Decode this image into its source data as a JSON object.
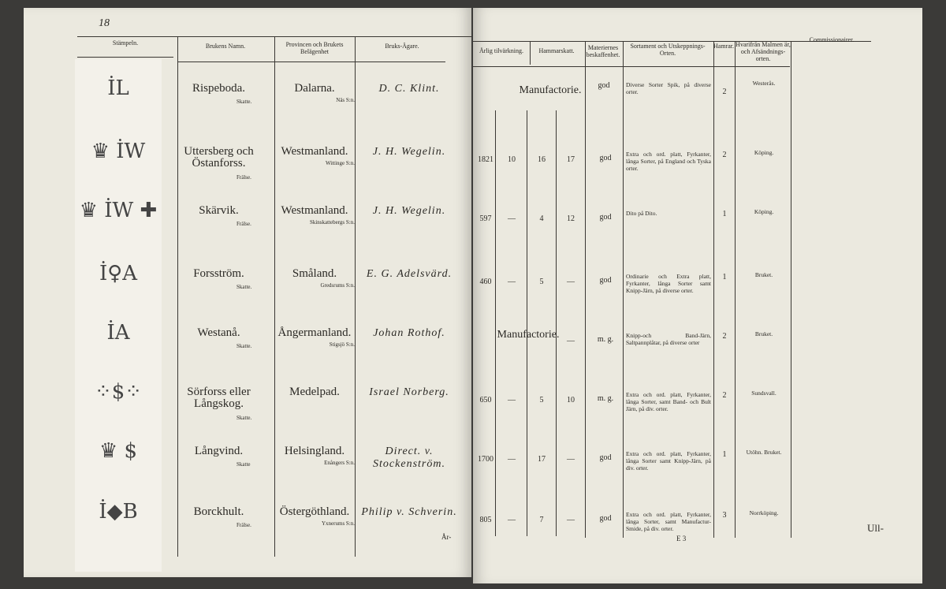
{
  "left_page": {
    "page_number": "18",
    "headers": [
      "Stämpeln.",
      "Brukens Namn.",
      "Provincen och Brukets Belägenhet",
      "Bruks-Ägare."
    ],
    "catchword": "År-"
  },
  "right_page": {
    "headers": [
      "Årlig tilvärkning.",
      "Hammarskatt.",
      "Materiernes beskaffenhet.",
      "Sortament och Utskeppnings-Orten.",
      "Hamrar.",
      "Hvarifrån Malmen är, och Afsändnings-orten.",
      "Commissionairer."
    ],
    "signature_mark": "E 3",
    "catchword": "Ull-"
  },
  "rows": [
    {
      "stamp": "İL",
      "name": "Rispeboda.",
      "tenure": "Skatte.",
      "province": "Dalarna.",
      "parish": "Näs S:n.",
      "owner": "D. C. Klint.",
      "production": "Manufactorie.",
      "c2": "",
      "c3": "",
      "c4": "",
      "quality": "god",
      "assortment": "Diverse Sorter Spik, på diverse orter.",
      "hammers": "2",
      "origin": "Westerås."
    },
    {
      "stamp": "♛ İW",
      "name": "Uttersberg och Östanforss.",
      "tenure": "Frälse.",
      "province": "Westmanland.",
      "parish": "Wittinge S:n.",
      "owner": "J. H. Wegelin.",
      "production": "1821",
      "c2": "10",
      "c3": "16",
      "c4": "17",
      "quality": "god",
      "assortment": "Extra och ord. platt, Fyrkanter, långa Sorter, på England och Tyska orter.",
      "hammers": "2",
      "origin": "Köping."
    },
    {
      "stamp": "♛ İW ✚",
      "name": "Skärvik.",
      "tenure": "Frälse.",
      "province": "Westmanland.",
      "parish": "Skinskattebergs S:n.",
      "owner": "J. H. Wegelin.",
      "production": "597",
      "c2": "—",
      "c3": "4",
      "c4": "12",
      "quality": "god",
      "assortment": "Dito på Dito.",
      "hammers": "1",
      "origin": "Köping."
    },
    {
      "stamp": "İ♀A",
      "name": "Forsström.",
      "tenure": "Skatte.",
      "province": "Småland.",
      "parish": "Gredsrums S:n.",
      "owner": "E. G. Adelsvärd.",
      "production": "460",
      "c2": "—",
      "c3": "5",
      "c4": "—",
      "quality": "god",
      "assortment": "Ordinarie och Extra platt, Fyrkanter, långa Sorter samt Knipp-Järn, på diverse orter.",
      "hammers": "1",
      "origin": "Bruket."
    },
    {
      "stamp": "İA",
      "name": "Westanå.",
      "tenure": "Skatte.",
      "province": "Ångermanland.",
      "parish": "Stigsjö S:n.",
      "owner": "Johan Rothof.",
      "production": "Manufactorie.",
      "c2": "",
      "c3": "",
      "c4": "—",
      "quality": "m. g.",
      "assortment": "Knipp-och Band-Järn, Saltpannplåtar, på diverse orter",
      "hammers": "2",
      "origin": "Bruket."
    },
    {
      "stamp": "⁘$⁘",
      "name": "Sörforss eller Långskog.",
      "tenure": "Skatte.",
      "province": "Medelpad.",
      "parish": "",
      "owner": "Israel Norberg.",
      "production": "650",
      "c2": "—",
      "c3": "5",
      "c4": "10",
      "quality": "m. g.",
      "assortment": "Extra och ord. platt, Fyrkanter, långa Sorter, samt Band- och Bult Järn, på div. orter.",
      "hammers": "2",
      "origin": "Sundsvall."
    },
    {
      "stamp": "♛ $",
      "name": "Långvind.",
      "tenure": "Skatte",
      "province": "Helsingland.",
      "parish": "Enångers S:n.",
      "owner": "Direct. v. Stockenström.",
      "production": "1700",
      "c2": "—",
      "c3": "17",
      "c4": "—",
      "quality": "god",
      "assortment": "Extra och ord. platt, Fyrkanter, långa Sorter samt Knipp-Järn, på div. orter.",
      "hammers": "1",
      "origin": "Utöhn. Bruket."
    },
    {
      "stamp": "İ◆B",
      "name": "Borckhult.",
      "tenure": "Frälse.",
      "province": "Östergöthland.",
      "parish": "Yxnerums S:n.",
      "owner": "Philip v. Schverin.",
      "production": "805",
      "c2": "—",
      "c3": "7",
      "c4": "—",
      "quality": "god",
      "assortment": "Extra och ord. platt, Fyrkanter, långa Sorter, samt Manufactur-Smide, på div. orter.",
      "hammers": "3",
      "origin": "Norrköping."
    }
  ]
}
